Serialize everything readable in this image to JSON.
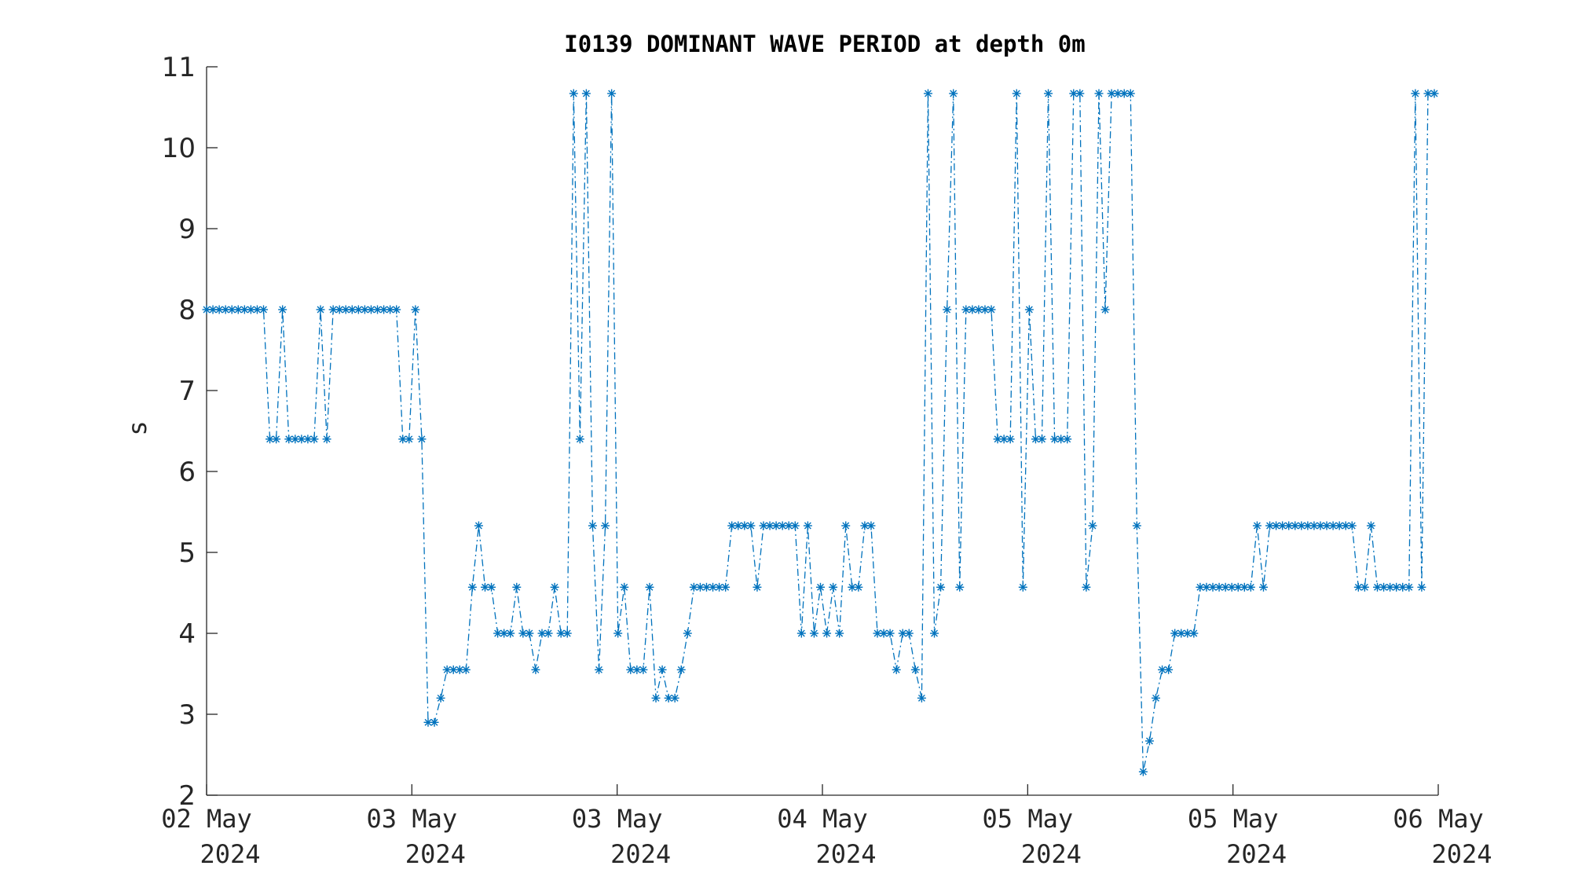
{
  "chart_data": {
    "type": "line",
    "title": "I0139 DOMINANT WAVE PERIOD at depth 0m",
    "xlabel": "",
    "ylabel": "s",
    "ylim": [
      2,
      11
    ],
    "y_ticks": [
      2,
      3,
      4,
      5,
      6,
      7,
      8,
      9,
      10,
      11
    ],
    "x_ticks": [
      {
        "line1": "02 May",
        "line2": "2024"
      },
      {
        "line1": "03 May",
        "line2": "2024"
      },
      {
        "line1": "03 May",
        "line2": "2024"
      },
      {
        "line1": "04 May",
        "line2": "2024"
      },
      {
        "line1": "05 May",
        "line2": "2024"
      },
      {
        "line1": "05 May",
        "line2": "2024"
      },
      {
        "line1": "06 May",
        "line2": "2024"
      }
    ],
    "grid": false,
    "legend": "none",
    "line_style": "dash-dot",
    "marker": "asterisk",
    "color": "#0072BD",
    "series": [
      {
        "values": [
          8.0,
          8.0,
          8.0,
          8.0,
          8.0,
          8.0,
          8.0,
          8.0,
          8.0,
          8.0,
          6.4,
          6.4,
          8.0,
          6.4,
          6.4,
          6.4,
          6.4,
          6.4,
          8.0,
          6.4,
          8.0,
          8.0,
          8.0,
          8.0,
          8.0,
          8.0,
          8.0,
          8.0,
          8.0,
          8.0,
          8.0,
          6.4,
          6.4,
          8.0,
          6.4,
          2.9,
          2.9,
          3.2,
          3.55,
          3.55,
          3.55,
          3.55,
          4.57,
          5.33,
          4.57,
          4.57,
          4.0,
          4.0,
          4.0,
          4.57,
          4.0,
          4.0,
          3.55,
          4.0,
          4.0,
          4.57,
          4.0,
          4.0,
          10.67,
          6.4,
          10.67,
          5.33,
          3.55,
          5.33,
          10.67,
          4.0,
          4.57,
          3.55,
          3.55,
          3.55,
          4.57,
          3.2,
          3.55,
          3.2,
          3.2,
          3.55,
          4.0,
          4.57,
          4.57,
          4.57,
          4.57,
          4.57,
          4.57,
          5.33,
          5.33,
          5.33,
          5.33,
          4.57,
          5.33,
          5.33,
          5.33,
          5.33,
          5.33,
          5.33,
          4.0,
          5.33,
          4.0,
          4.57,
          4.0,
          4.57,
          4.0,
          5.33,
          4.57,
          4.57,
          5.33,
          5.33,
          4.0,
          4.0,
          4.0,
          3.55,
          4.0,
          4.0,
          3.55,
          3.2,
          10.67,
          4.0,
          4.57,
          8.0,
          10.67,
          4.57,
          8.0,
          8.0,
          8.0,
          8.0,
          8.0,
          6.4,
          6.4,
          6.4,
          10.67,
          4.57,
          8.0,
          6.4,
          6.4,
          10.67,
          6.4,
          6.4,
          6.4,
          10.67,
          10.67,
          4.57,
          5.33,
          10.67,
          8.0,
          10.67,
          10.67,
          10.67,
          10.67,
          5.33,
          2.29,
          2.67,
          3.2,
          3.55,
          3.55,
          4.0,
          4.0,
          4.0,
          4.0,
          4.57,
          4.57,
          4.57,
          4.57,
          4.57,
          4.57,
          4.57,
          4.57,
          4.57,
          5.33,
          4.57,
          5.33,
          5.33,
          5.33,
          5.33,
          5.33,
          5.33,
          5.33,
          5.33,
          5.33,
          5.33,
          5.33,
          5.33,
          5.33,
          5.33,
          4.57,
          4.57,
          5.33,
          4.57,
          4.57,
          4.57,
          4.57,
          4.57,
          4.57,
          10.67,
          4.57,
          10.67,
          10.67
        ]
      }
    ]
  }
}
